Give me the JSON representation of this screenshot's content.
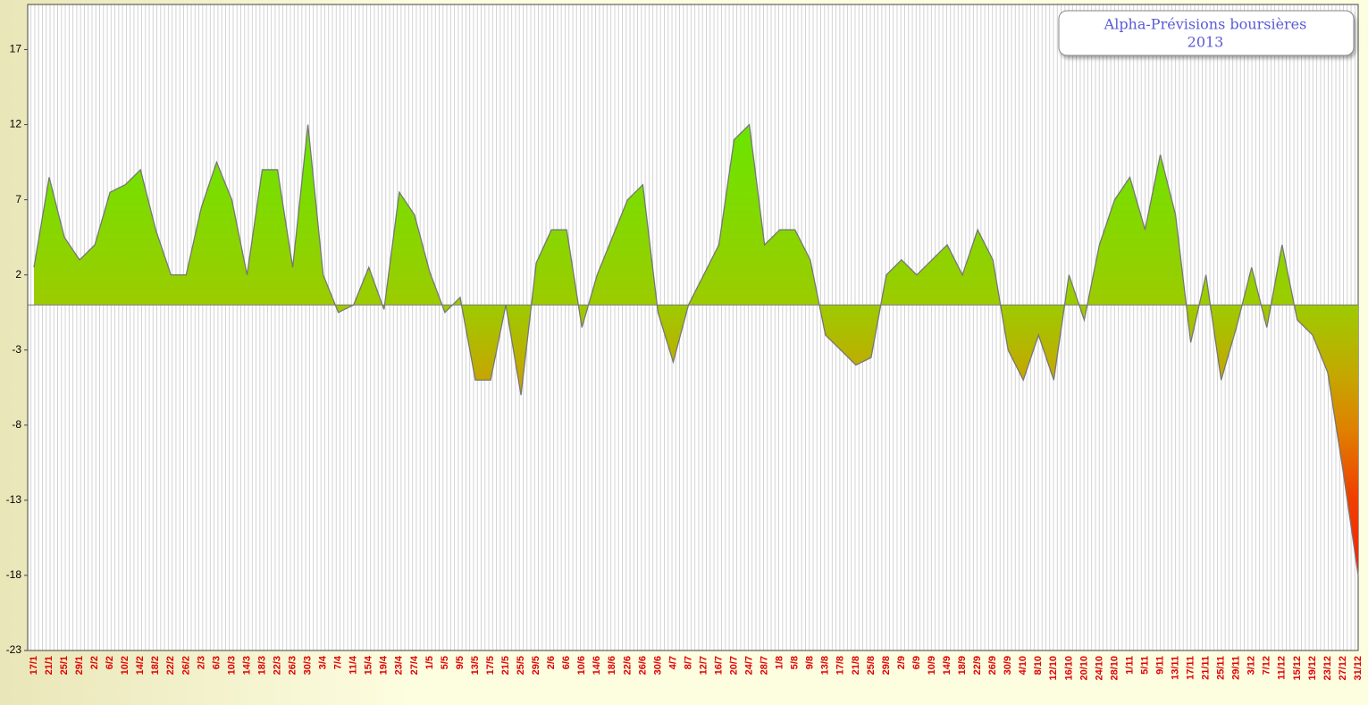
{
  "chart_data": {
    "type": "area",
    "title": "Alpha-Prévisions boursières",
    "subtitle": "2013",
    "categories": [
      "17/1",
      "21/1",
      "25/1",
      "29/1",
      "2/2",
      "6/2",
      "10/2",
      "14/2",
      "18/2",
      "22/2",
      "26/2",
      "2/3",
      "6/3",
      "10/3",
      "14/3",
      "18/3",
      "22/3",
      "26/3",
      "30/3",
      "3/4",
      "7/4",
      "11/4",
      "15/4",
      "19/4",
      "23/4",
      "27/4",
      "1/5",
      "5/5",
      "9/5",
      "13/5",
      "17/5",
      "21/5",
      "25/5",
      "29/5",
      "2/6",
      "6/6",
      "10/6",
      "14/6",
      "18/6",
      "22/6",
      "26/6",
      "30/6",
      "4/7",
      "8/7",
      "12/7",
      "16/7",
      "20/7",
      "24/7",
      "28/7",
      "1/8",
      "5/8",
      "9/8",
      "13/8",
      "17/8",
      "21/8",
      "25/8",
      "29/8",
      "2/9",
      "6/9",
      "10/9",
      "14/9",
      "18/9",
      "22/9",
      "26/9",
      "30/9",
      "4/10",
      "8/10",
      "12/10",
      "16/10",
      "20/10",
      "24/10",
      "28/10",
      "1/11",
      "5/11",
      "9/11",
      "13/11",
      "17/11",
      "21/11",
      "25/11",
      "29/11",
      "3/12",
      "7/12",
      "11/12",
      "15/12",
      "19/12",
      "23/12",
      "27/12",
      "31/12"
    ],
    "values": [
      2.5,
      8.5,
      4.5,
      3,
      4,
      7.5,
      8,
      9,
      5,
      2,
      2,
      6.5,
      9.5,
      7,
      2,
      9,
      9,
      2.5,
      12,
      2,
      -0.5,
      0,
      2.5,
      -0.3,
      7.5,
      6,
      2.2,
      -0.5,
      0.5,
      -5,
      -5,
      0,
      -6,
      2.8,
      5,
      5,
      -1.5,
      2,
      4.5,
      7,
      8,
      -0.5,
      -3.8,
      0,
      2,
      4,
      11,
      12,
      4,
      5,
      5,
      3,
      -2,
      -3,
      -4,
      -3.5,
      2,
      3,
      2,
      3,
      4,
      2,
      5,
      3,
      -3,
      -5,
      -2,
      -5,
      2,
      -1,
      4,
      7,
      8.5,
      5,
      10,
      6,
      -2.5,
      2,
      -5,
      -1.5,
      2.5,
      -1.5,
      4,
      -1,
      -2,
      -4.5,
      -11,
      -18
    ],
    "ylim": [
      -23,
      20
    ],
    "yticks": [
      -23,
      -18,
      -13,
      -8,
      -3,
      2,
      7,
      12,
      17
    ]
  }
}
